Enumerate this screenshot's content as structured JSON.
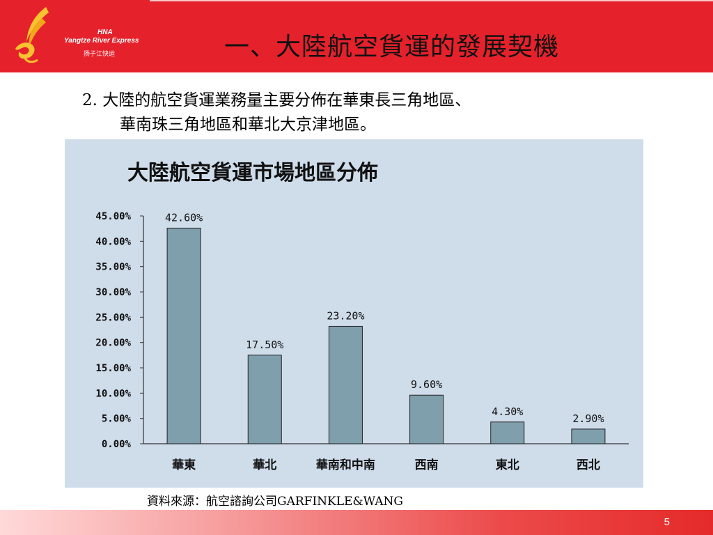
{
  "header": {
    "title": "一、大陸航空貨運的發展契機",
    "logo": {
      "brand": "HNA",
      "name_en": "Yangtze River Express",
      "name_cn": "扬子江快运"
    }
  },
  "body": {
    "line1": "2.  大陸的航空貨運業務量主要分佈在華東長三角地區、",
    "line2": "華南珠三角地區和華北大京津地區。"
  },
  "source": "資料來源：航空諮詢公司GARFINKLE&WANG",
  "page_number": "5",
  "colors": {
    "header_red": "#e5212b",
    "chart_bg": "#cfdcea",
    "bar_fill": "#7f9fad"
  },
  "chart_data": {
    "type": "bar",
    "title": "大陸航空貨運市場地區分佈",
    "categories": [
      "華東",
      "華北",
      "華南和中南",
      "西南",
      "東北",
      "西北"
    ],
    "values": [
      42.6,
      17.5,
      23.2,
      9.6,
      4.3,
      2.9
    ],
    "data_labels": [
      "42.60%",
      "17.50%",
      "23.20%",
      "9.60%",
      "4.30%",
      "2.90%"
    ],
    "y_ticks": [
      "0.00%",
      "5.00%",
      "10.00%",
      "15.00%",
      "20.00%",
      "25.00%",
      "30.00%",
      "35.00%",
      "40.00%",
      "45.00%"
    ],
    "ylim": [
      0,
      45
    ],
    "grid": false,
    "legend": "none"
  }
}
